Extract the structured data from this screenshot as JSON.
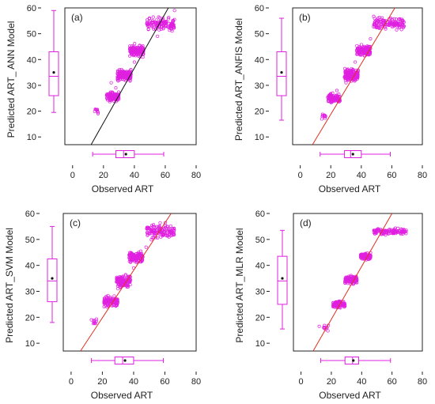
{
  "colors": {
    "points": "#e020e0",
    "box": "#e020e0",
    "fit_black": "#111111",
    "fit_red": "#e03020",
    "mean_dot": "#111111",
    "axes": "#222222"
  },
  "chart_data": [
    {
      "type": "scatter",
      "panel_label": "(a)",
      "title": "",
      "xlabel": "Observed ART",
      "ylabel": "Predicted ART_ ANN Model",
      "xlim": [
        -5,
        80
      ],
      "ylim": [
        7,
        60
      ],
      "xticks": [
        0,
        20,
        40,
        60,
        80
      ],
      "yticks": [
        10,
        20,
        30,
        40,
        50,
        60
      ],
      "fit_line": {
        "color": "black",
        "from": [
          12,
          7
        ],
        "to": [
          62,
          60
        ]
      },
      "clusters": [
        {
          "x_range": [
            14,
            17
          ],
          "y_center": 20,
          "n": 10,
          "spread": 0.6
        },
        {
          "x_range": [
            22,
            30
          ],
          "y_center": 25.5,
          "n": 120,
          "spread": 0.8
        },
        {
          "x_range": [
            29,
            38
          ],
          "y_center": 34,
          "n": 150,
          "spread": 1.0
        },
        {
          "x_range": [
            37,
            46
          ],
          "y_center": 43.5,
          "n": 140,
          "spread": 1.0
        },
        {
          "x_range": [
            48,
            66
          ],
          "y_center": 53.5,
          "n": 130,
          "spread": 1.2
        }
      ],
      "outliers": [
        {
          "x": 28,
          "y": 29
        },
        {
          "x": 25,
          "y": 31
        },
        {
          "x": 40,
          "y": 39
        },
        {
          "x": 55,
          "y": 49
        },
        {
          "x": 66,
          "y": 59
        }
      ],
      "y_box": {
        "min": 19.5,
        "q1": 26,
        "median": 33.5,
        "q3": 43,
        "max": 59,
        "mean": 35
      },
      "x_box": {
        "min": 13,
        "q1": 28,
        "median": 33,
        "q3": 40,
        "max": 59,
        "mean": 34.5
      }
    },
    {
      "type": "scatter",
      "panel_label": "(b)",
      "title": "",
      "xlabel": "Observed ART",
      "ylabel": "Predicted ART_ANFIS Model",
      "xlim": [
        -5,
        80
      ],
      "ylim": [
        7,
        60
      ],
      "xticks": [
        0,
        20,
        40,
        60,
        80
      ],
      "yticks": [
        10,
        20,
        30,
        40,
        50,
        60
      ],
      "fit_line": {
        "color": "red",
        "from": [
          8,
          7
        ],
        "to": [
          62,
          60
        ]
      },
      "clusters": [
        {
          "x_range": [
            14,
            17
          ],
          "y_center": 17.5,
          "n": 10,
          "spread": 0.6
        },
        {
          "x_range": [
            18,
            26
          ],
          "y_center": 25,
          "n": 120,
          "spread": 0.8
        },
        {
          "x_range": [
            29,
            38
          ],
          "y_center": 34,
          "n": 150,
          "spread": 1.0
        },
        {
          "x_range": [
            37,
            46
          ],
          "y_center": 43.5,
          "n": 140,
          "spread": 1.0
        },
        {
          "x_range": [
            48,
            68
          ],
          "y_center": 54,
          "n": 130,
          "spread": 1.2
        }
      ],
      "outliers": [
        {
          "x": 24,
          "y": 28
        },
        {
          "x": 30,
          "y": 31
        },
        {
          "x": 36,
          "y": 39
        },
        {
          "x": 46,
          "y": 48
        }
      ],
      "y_box": {
        "min": 16.5,
        "q1": 26,
        "median": 33.5,
        "q3": 43,
        "max": 56,
        "mean": 35
      },
      "x_box": {
        "min": 13,
        "q1": 29,
        "median": 33,
        "q3": 40,
        "max": 59,
        "mean": 34.5
      }
    },
    {
      "type": "scatter",
      "panel_label": "(c)",
      "title": "",
      "xlabel": "Observed ART",
      "ylabel": "Predicted ART_SVM Model",
      "xlim": [
        -5,
        80
      ],
      "ylim": [
        7,
        60
      ],
      "xticks": [
        0,
        20,
        40,
        60,
        80
      ],
      "yticks": [
        10,
        20,
        30,
        40,
        50,
        60
      ],
      "fit_line": {
        "color": "red",
        "from": [
          6,
          7
        ],
        "to": [
          64,
          60
        ]
      },
      "clusters": [
        {
          "x_range": [
            14,
            17
          ],
          "y_center": 18.5,
          "n": 10,
          "spread": 0.6
        },
        {
          "x_range": [
            21,
            30
          ],
          "y_center": 26,
          "n": 120,
          "spread": 0.8
        },
        {
          "x_range": [
            29,
            38
          ],
          "y_center": 34,
          "n": 150,
          "spread": 1.0
        },
        {
          "x_range": [
            37,
            46
          ],
          "y_center": 43,
          "n": 140,
          "spread": 1.0
        },
        {
          "x_range": [
            48,
            66
          ],
          "y_center": 53,
          "n": 130,
          "spread": 1.2
        }
      ],
      "outliers": [
        {
          "x": 13,
          "y": 19
        },
        {
          "x": 30,
          "y": 31
        },
        {
          "x": 40,
          "y": 39
        },
        {
          "x": 48,
          "y": 47
        }
      ],
      "y_box": {
        "min": 18,
        "q1": 26,
        "median": 34,
        "q3": 42.5,
        "max": 55,
        "mean": 35
      },
      "x_box": {
        "min": 13,
        "q1": 28,
        "median": 33,
        "q3": 40,
        "max": 59,
        "mean": 34.5
      }
    },
    {
      "type": "scatter",
      "panel_label": "(d)",
      "title": "",
      "xlabel": "Observed ART",
      "ylabel": "Predicted ART_MLR Model",
      "xlim": [
        -5,
        80
      ],
      "ylim": [
        7,
        60
      ],
      "xticks": [
        0,
        20,
        40,
        60,
        80
      ],
      "yticks": [
        10,
        20,
        30,
        40,
        50,
        60
      ],
      "fit_line": {
        "color": "red",
        "from": [
          8,
          7
        ],
        "to": [
          60,
          60
        ]
      },
      "clusters": [
        {
          "x_range": [
            15,
            18
          ],
          "y_center": 16,
          "n": 10,
          "spread": 0.5
        },
        {
          "x_range": [
            21,
            29
          ],
          "y_center": 25,
          "n": 110,
          "spread": 0.6
        },
        {
          "x_range": [
            29,
            37
          ],
          "y_center": 34.5,
          "n": 130,
          "spread": 0.7
        },
        {
          "x_range": [
            39,
            46
          ],
          "y_center": 43.5,
          "n": 110,
          "spread": 0.6
        },
        {
          "x_range": [
            48,
            70
          ],
          "y_center": 53,
          "n": 120,
          "spread": 0.5
        }
      ],
      "outliers": [
        {
          "x": 12,
          "y": 16.5
        },
        {
          "x": 60,
          "y": 53
        }
      ],
      "y_box": {
        "min": 15.5,
        "q1": 25,
        "median": 34,
        "q3": 43.5,
        "max": 53.5,
        "mean": 35
      },
      "x_box": {
        "min": 13,
        "q1": 29,
        "median": 34,
        "q3": 38,
        "max": 59,
        "mean": 34.5
      }
    }
  ]
}
